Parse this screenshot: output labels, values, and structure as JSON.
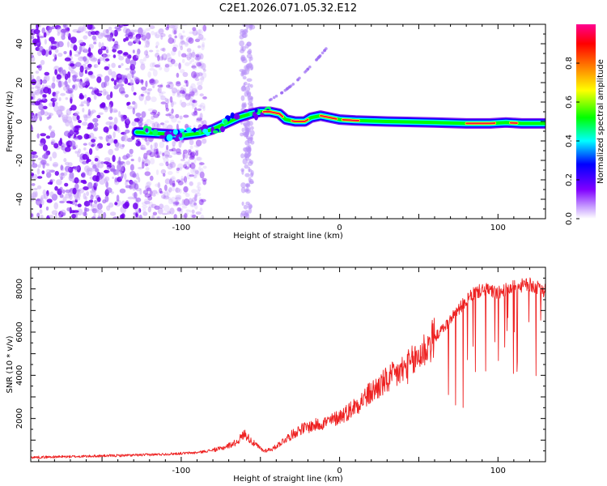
{
  "figure": {
    "title": "C2E1.2026.071.05.32.E12"
  },
  "chart_data": [
    {
      "type": "heatmap",
      "kind": "spectrogram",
      "title": "C2E1.2026.071.05.32.E12",
      "xlabel": "Height of straight line (km)",
      "ylabel": "Frequency (Hz)",
      "xlim": [
        -195,
        130
      ],
      "ylim": [
        -50,
        50
      ],
      "xticks": [
        -100,
        0,
        100
      ],
      "yticks": [
        -40,
        -20,
        0,
        20,
        40
      ],
      "xtick_labels": [
        "-100",
        "0",
        "100"
      ],
      "ytick_labels": [
        "-40",
        "-20",
        "0",
        "20",
        "40"
      ],
      "colorbar": {
        "label": "Normalized spectral amplitude",
        "range": [
          0,
          1
        ],
        "ticks": [
          "0.0",
          "0.2",
          "0.4",
          "0.6",
          "0.8"
        ],
        "colormap": [
          "#ffffff",
          "#8000ff",
          "#0000ff",
          "#00ffff",
          "#00ff00",
          "#ffff00",
          "#ff8000",
          "#ff0000",
          "#ff0080"
        ]
      },
      "noise_region_x": [
        -195,
        -125
      ],
      "noise_band_x": [
        -62,
        -55
      ],
      "main_track": {
        "name": "Doppler frequency track",
        "points": [
          {
            "x": -128,
            "f": -5.5
          },
          {
            "x": -118,
            "f": -6
          },
          {
            "x": -108,
            "f": -6.5
          },
          {
            "x": -98,
            "f": -7
          },
          {
            "x": -88,
            "f": -6
          },
          {
            "x": -80,
            "f": -4
          },
          {
            "x": -72,
            "f": -1
          },
          {
            "x": -64,
            "f": 2
          },
          {
            "x": -56,
            "f": 4
          },
          {
            "x": -50,
            "f": 5
          },
          {
            "x": -44,
            "f": 5
          },
          {
            "x": -38,
            "f": 4
          },
          {
            "x": -34,
            "f": 1
          },
          {
            "x": -28,
            "f": 0
          },
          {
            "x": -22,
            "f": 0
          },
          {
            "x": -18,
            "f": 2
          },
          {
            "x": -12,
            "f": 3
          },
          {
            "x": -6,
            "f": 2
          },
          {
            "x": 0,
            "f": 1
          },
          {
            "x": 10,
            "f": 0.5
          },
          {
            "x": 30,
            "f": 0
          },
          {
            "x": 60,
            "f": -0.5
          },
          {
            "x": 80,
            "f": -1
          },
          {
            "x": 95,
            "f": -1
          },
          {
            "x": 105,
            "f": -0.5
          },
          {
            "x": 115,
            "f": -1
          },
          {
            "x": 130,
            "f": -1
          }
        ]
      },
      "secondary_track": {
        "name": "Rising faint streak",
        "points": [
          {
            "x": -44,
            "f": 11
          },
          {
            "x": -36,
            "f": 15
          },
          {
            "x": -28,
            "f": 20
          },
          {
            "x": -20,
            "f": 27
          },
          {
            "x": -12,
            "f": 34
          },
          {
            "x": -8,
            "f": 38
          }
        ]
      }
    },
    {
      "type": "line",
      "title": "",
      "xlabel": "Height of straight line (km)",
      "ylabel": "SNR (10 * v/v)",
      "xlim": [
        -195,
        130
      ],
      "ylim": [
        0,
        9000
      ],
      "xticks": [
        -100,
        0,
        100
      ],
      "yticks": [
        2000,
        4000,
        6000,
        8000
      ],
      "xtick_labels": [
        "-100",
        "0",
        "100"
      ],
      "ytick_labels": [
        "2000",
        "4000",
        "6000",
        "8000"
      ],
      "series": [
        {
          "name": "SNR",
          "color": "#ee2222",
          "envelope": [
            {
              "x": -195,
              "y": 200
            },
            {
              "x": -160,
              "y": 250
            },
            {
              "x": -130,
              "y": 300
            },
            {
              "x": -110,
              "y": 350
            },
            {
              "x": -90,
              "y": 420
            },
            {
              "x": -75,
              "y": 600
            },
            {
              "x": -65,
              "y": 900
            },
            {
              "x": -60,
              "y": 1300
            },
            {
              "x": -55,
              "y": 900
            },
            {
              "x": -48,
              "y": 500
            },
            {
              "x": -42,
              "y": 600
            },
            {
              "x": -35,
              "y": 1000
            },
            {
              "x": -25,
              "y": 1500
            },
            {
              "x": -15,
              "y": 1700
            },
            {
              "x": -5,
              "y": 1900
            },
            {
              "x": 5,
              "y": 2300
            },
            {
              "x": 15,
              "y": 2900
            },
            {
              "x": 25,
              "y": 3500
            },
            {
              "x": 35,
              "y": 4000
            },
            {
              "x": 45,
              "y": 4500
            },
            {
              "x": 55,
              "y": 5300
            },
            {
              "x": 62,
              "y": 5900
            },
            {
              "x": 68,
              "y": 6400
            },
            {
              "x": 72,
              "y": 6800
            },
            {
              "x": 78,
              "y": 7300
            },
            {
              "x": 85,
              "y": 7800
            },
            {
              "x": 92,
              "y": 8000
            },
            {
              "x": 100,
              "y": 7800
            },
            {
              "x": 110,
              "y": 8100
            },
            {
              "x": 120,
              "y": 8200
            },
            {
              "x": 130,
              "y": 7900
            }
          ],
          "dropout_region_x": [
            68,
            128
          ],
          "dropout_min_y": 2500
        }
      ]
    }
  ]
}
